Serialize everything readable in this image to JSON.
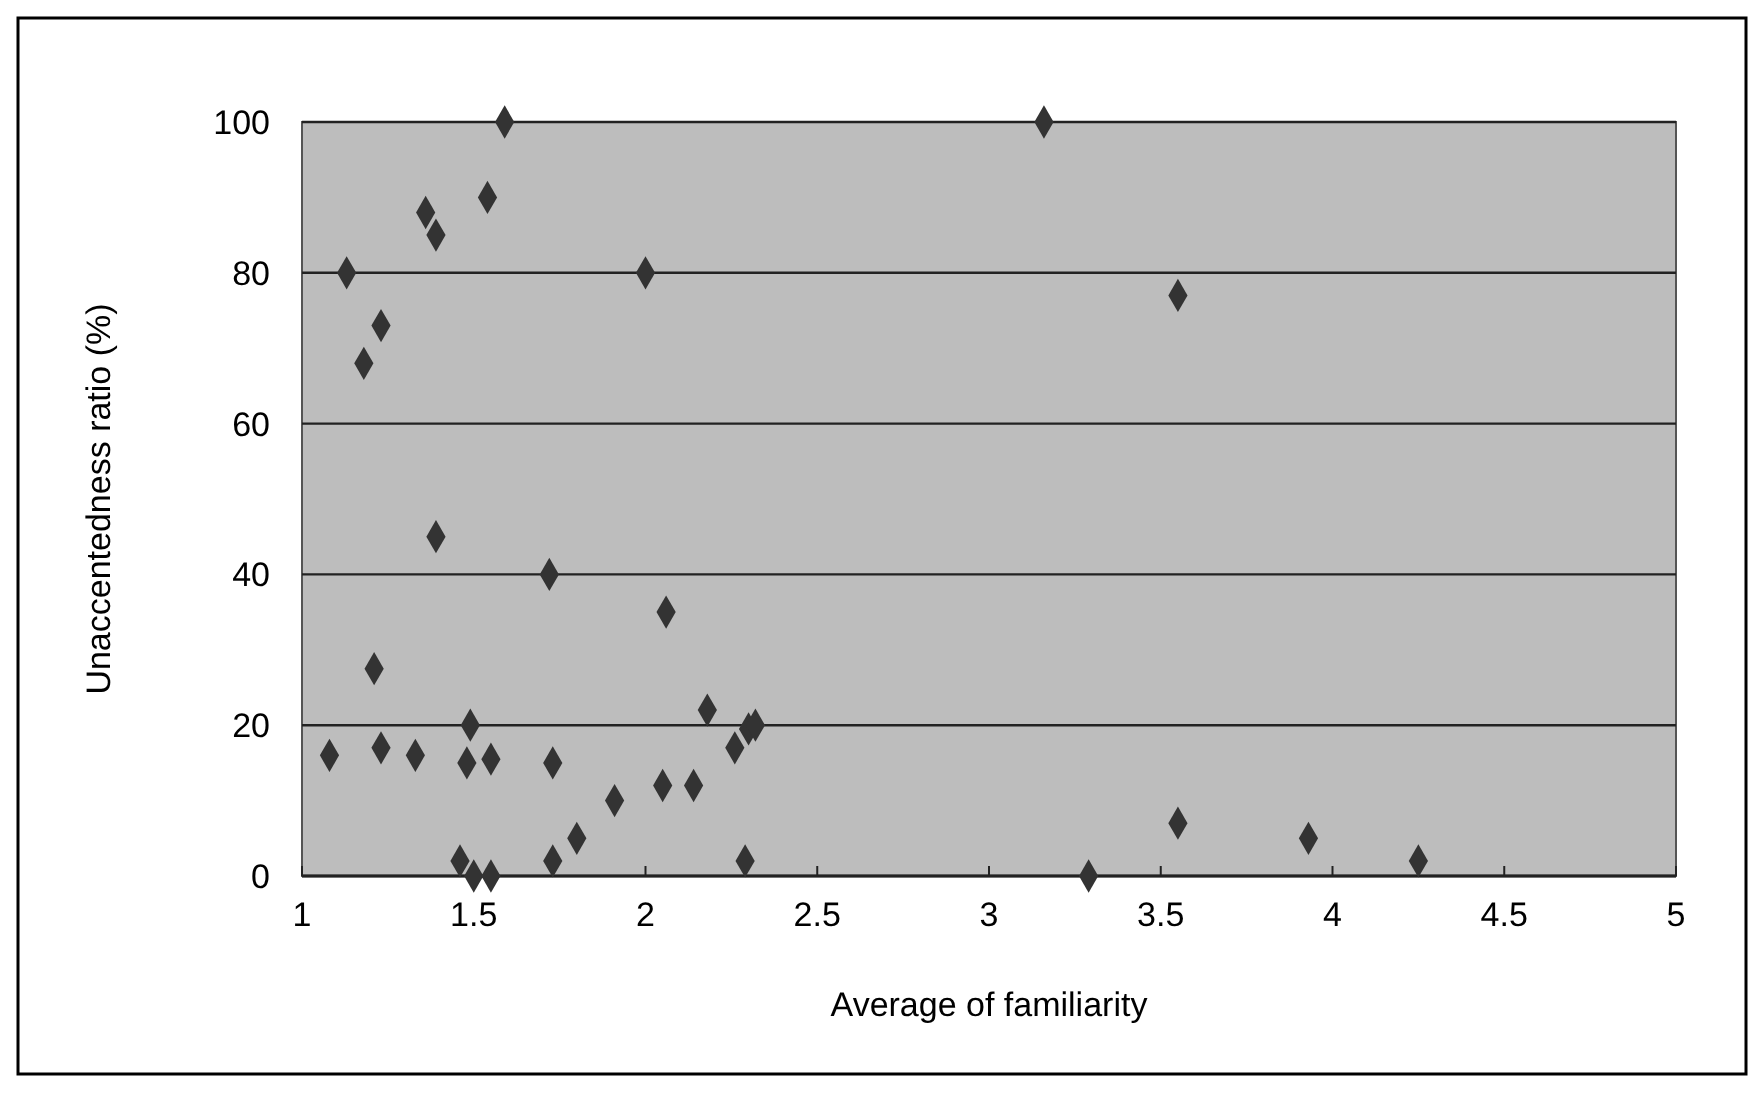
{
  "chart_data": {
    "type": "scatter",
    "xlabel": "Average of familiarity",
    "ylabel": "Unaccentedness ratio (%)",
    "xlim": [
      1,
      5
    ],
    "xticks": [
      1,
      1.5,
      2,
      2.5,
      3,
      3.5,
      4,
      4.5,
      5
    ],
    "ylim": [
      0,
      100
    ],
    "yticks": [
      0,
      20,
      40,
      60,
      80,
      100
    ],
    "grid": "y",
    "marker": "diamond",
    "series": [
      {
        "color": "#333333",
        "x": [
          1.08,
          1.13,
          1.18,
          1.21,
          1.23,
          1.23,
          1.33,
          1.36,
          1.39,
          1.39,
          1.46,
          1.49,
          1.48,
          1.5,
          1.54,
          1.55,
          1.55,
          1.59,
          1.72,
          1.73,
          1.73,
          1.8,
          1.91,
          2.0,
          2.06,
          2.05,
          2.14,
          2.18,
          2.26,
          2.3,
          2.32,
          2.29,
          3.16,
          3.29,
          3.55,
          3.55,
          3.93,
          4.25
        ],
        "values": [
          16,
          80,
          68,
          27.5,
          73,
          17,
          16,
          88,
          85,
          45,
          2,
          20,
          15,
          0,
          90,
          15.5,
          0,
          100,
          40,
          15,
          2,
          5,
          10,
          80,
          35,
          12,
          12,
          22,
          17,
          19.5,
          20,
          2,
          100,
          0,
          77,
          7,
          5,
          2
        ]
      }
    ]
  }
}
